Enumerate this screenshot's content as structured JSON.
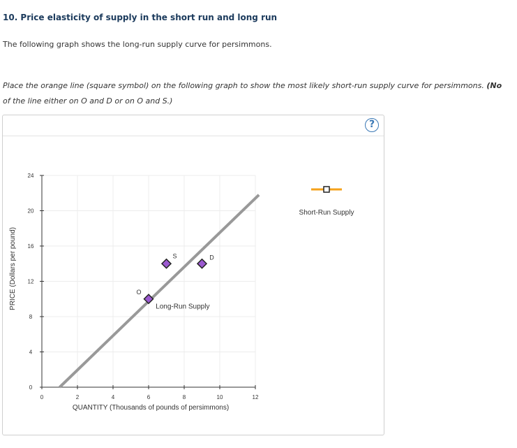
{
  "question": {
    "title": "10. Price elasticity of supply in the short run and long run",
    "intro": "The following graph shows the long-run supply curve for persimmons.",
    "instruction": "Place the orange line (square symbol) on the following graph to show the most likely short-run supply curve for persimmons.",
    "instruction_bold": "(No",
    "instruction_line2": "of the line either on O and D or on O and S.)"
  },
  "help": {
    "label": "?"
  },
  "palette": {
    "title": "Short-Run Supply",
    "color": "#f5a21b"
  },
  "chart_data": {
    "type": "line",
    "xlabel": "QUANTITY (Thousands of pounds of persimmons)",
    "ylabel": "PRICE (Dollars per pound)",
    "xlim": [
      0,
      12
    ],
    "ylim": [
      0,
      24
    ],
    "xticks": [
      0,
      2,
      4,
      6,
      8,
      10,
      12
    ],
    "yticks": [
      0,
      4,
      8,
      12,
      16,
      20,
      24
    ],
    "grid": true,
    "series": [
      {
        "name": "Long-Run Supply",
        "color": "#999999",
        "x": [
          1,
          12.2
        ],
        "y": [
          0,
          21.8
        ]
      }
    ],
    "points": [
      {
        "label": "O",
        "x": 6,
        "y": 10
      },
      {
        "label": "S",
        "x": 7,
        "y": 14
      },
      {
        "label": "D",
        "x": 9,
        "y": 14
      }
    ]
  }
}
